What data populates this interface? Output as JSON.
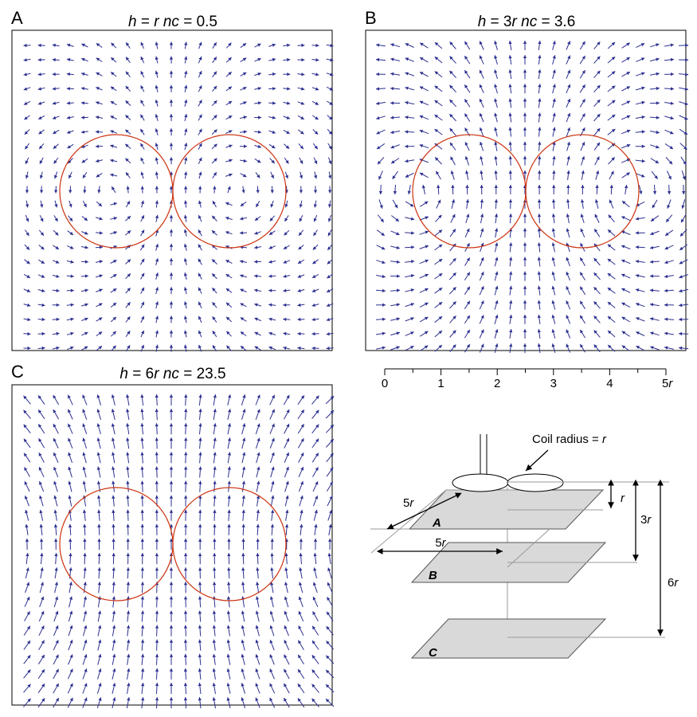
{
  "panels": [
    {
      "label": "A",
      "title": {
        "h": "h",
        "eq1": " = ",
        "val": "r",
        "nc": "nc",
        "eq2": " = ",
        "ncval": "0.5"
      }
    },
    {
      "label": "B",
      "title": {
        "h": "h",
        "eq1": " = 3",
        "val": "r",
        "nc": "nc",
        "eq2": " = ",
        "ncval": "3.6"
      }
    },
    {
      "label": "C",
      "title": {
        "h": "h",
        "eq1": " = 6",
        "val": "r",
        "nc": "nc",
        "eq2": " = ",
        "ncval": "23.5"
      }
    }
  ],
  "scale": {
    "ticks": [
      "0",
      "1",
      "2",
      "3",
      "4",
      "5"
    ],
    "unit": "r"
  },
  "diagram": {
    "coil_label_text": "Coil radius = ",
    "coil_label_var": "r",
    "plane_labels": [
      "A",
      "B",
      "C"
    ],
    "dim_5r_upper": {
      "num": "5",
      "var": "r"
    },
    "dim_5r_lower": {
      "num": "5",
      "var": "r"
    },
    "dim_r": {
      "num": "",
      "var": "r"
    },
    "dim_3r": {
      "num": "3",
      "var": "r"
    },
    "dim_6r": {
      "num": "6",
      "var": "r"
    }
  },
  "colors": {
    "arrow": "#2b2f8f",
    "coil": "#cc3311",
    "frame": "#000000",
    "plane_fill": "#d9d9d9",
    "guide": "#9a9a9a"
  }
}
